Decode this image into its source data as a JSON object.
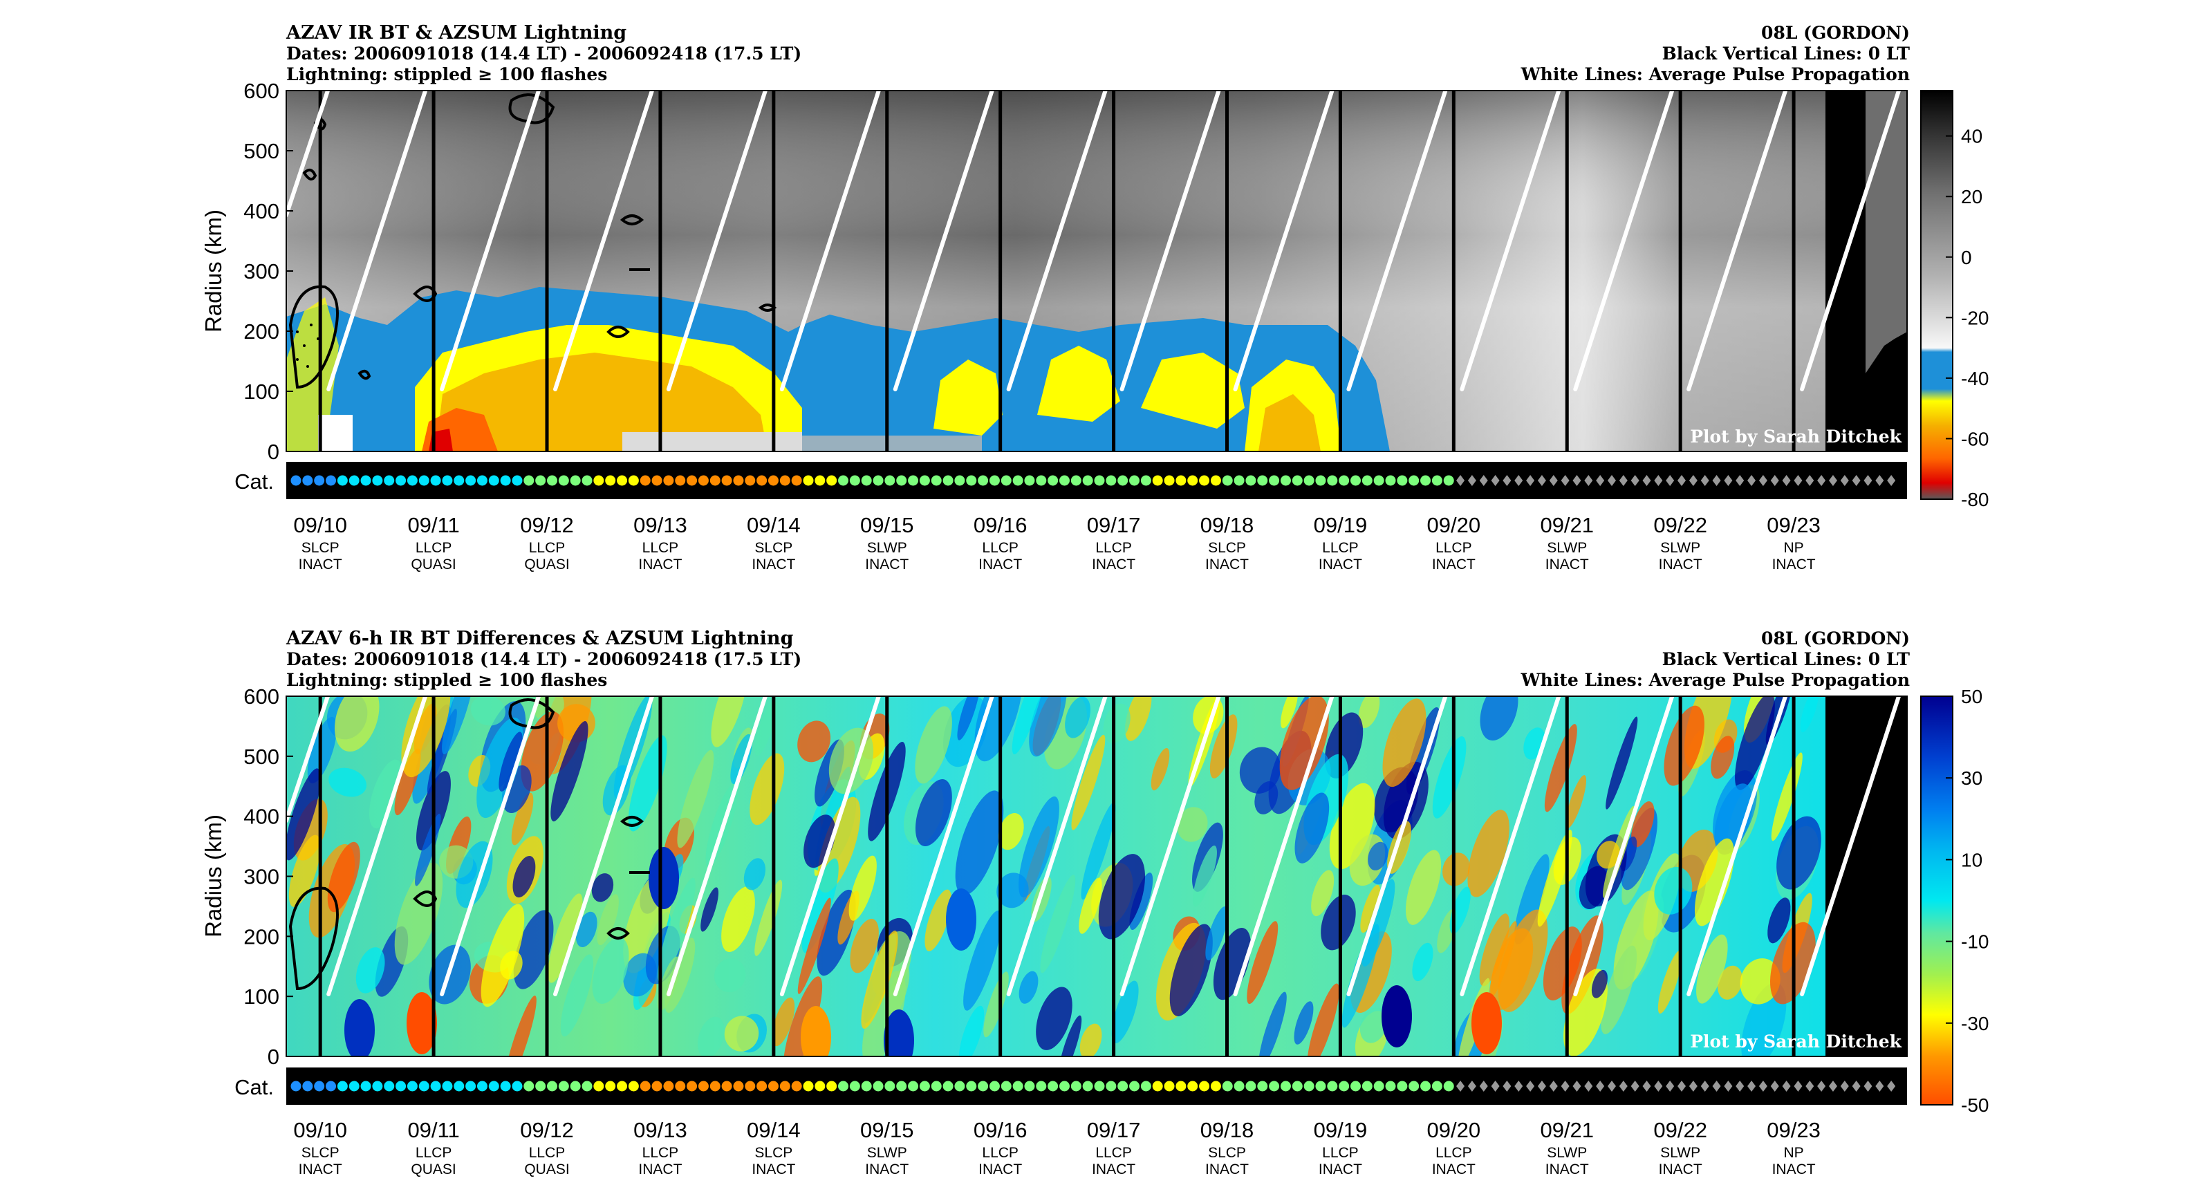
{
  "colors": {
    "ir_colorbar": [
      "#f5f5f5",
      "#e0e0e0",
      "#c8c8c8",
      "#b0b0b0",
      "#989898",
      "#808080",
      "#606060",
      "#404040",
      "#202020",
      "#000000"
    ],
    "ir_cold": [
      "#1e90d8",
      "#ffff00",
      "#f5c400",
      "#f59a00",
      "#ff6600",
      "#e00000",
      "#606060"
    ],
    "diff_colorbar": [
      "#ff4d00",
      "#ff9900",
      "#ffd000",
      "#ffff00",
      "#c8f040",
      "#90e870",
      "#50e8b0",
      "#00e8f0",
      "#00c0f0",
      "#0090f0",
      "#0060e0",
      "#0030c0",
      "#000090"
    ],
    "category_dots": [
      "#1e90ff",
      "#00e5ff",
      "#7dff7d",
      "#ffff00",
      "#ff8c00"
    ],
    "category_diamond": "#9a9a9a"
  },
  "panels": [
    {
      "title": "AZAV IR BT & AZSUM Lightning",
      "dates_line": "Dates: 2006091018 (14.4 LT) - 2006092418 (17.5 LT)",
      "lightning_line": "Lightning: stippled ≥ 100 flashes",
      "storm": "08L (GORDON)",
      "vertical_lines_note": "Black Vertical Lines: 0 LT",
      "white_lines_note": "White Lines: Average Pulse Propagation",
      "credit": "Plot by Sarah Ditchek",
      "ylabel": "Radius (km)",
      "cat_label": "Cat.",
      "colorbar_ticks": [
        "40",
        "20",
        "0",
        "-20",
        "-40",
        "-60",
        "-80"
      ]
    },
    {
      "title": "AZAV 6-h IR BT Differences & AZSUM Lightning",
      "dates_line": "Dates: 2006091018 (14.4 LT) - 2006092418 (17.5 LT)",
      "lightning_line": "Lightning: stippled ≥ 100 flashes",
      "storm": "08L (GORDON)",
      "vertical_lines_note": "Black Vertical Lines: 0 LT",
      "white_lines_note": "White Lines: Average Pulse Propagation",
      "credit": "Plot by Sarah Ditchek",
      "ylabel": "Radius (km)",
      "cat_label": "Cat.",
      "colorbar_ticks": [
        "50",
        "30",
        "10",
        "-10",
        "-30",
        "-50"
      ]
    }
  ],
  "chart_data": {
    "type": "heatmap",
    "ylim": [
      0,
      600
    ],
    "yticks": [
      0,
      100,
      200,
      300,
      400,
      500,
      600
    ],
    "x_days": [
      {
        "date": "09/10",
        "structure": "SLCP",
        "activity": "INACT"
      },
      {
        "date": "09/11",
        "structure": "LLCP",
        "activity": "QUASI"
      },
      {
        "date": "09/12",
        "structure": "LLCP",
        "activity": "QUASI"
      },
      {
        "date": "09/13",
        "structure": "LLCP",
        "activity": "INACT"
      },
      {
        "date": "09/14",
        "structure": "SLCP",
        "activity": "INACT"
      },
      {
        "date": "09/15",
        "structure": "SLWP",
        "activity": "INACT"
      },
      {
        "date": "09/16",
        "structure": "LLCP",
        "activity": "INACT"
      },
      {
        "date": "09/17",
        "structure": "LLCP",
        "activity": "INACT"
      },
      {
        "date": "09/18",
        "structure": "SLCP",
        "activity": "INACT"
      },
      {
        "date": "09/19",
        "structure": "LLCP",
        "activity": "INACT"
      },
      {
        "date": "09/20",
        "structure": "LLCP",
        "activity": "INACT"
      },
      {
        "date": "09/21",
        "structure": "SLWP",
        "activity": "INACT"
      },
      {
        "date": "09/22",
        "structure": "SLWP",
        "activity": "INACT"
      },
      {
        "date": "09/23",
        "structure": "NP",
        "activity": "INACT"
      }
    ],
    "ir_colorbar_range": [
      -80,
      55
    ],
    "diff_colorbar_range": [
      -50,
      50
    ],
    "category_sequence": [
      0,
      0,
      0,
      0,
      1,
      1,
      1,
      1,
      1,
      1,
      1,
      1,
      1,
      1,
      1,
      1,
      1,
      1,
      1,
      1,
      2,
      2,
      2,
      2,
      2,
      2,
      3,
      3,
      3,
      3,
      4,
      4,
      4,
      4,
      4,
      4,
      4,
      4,
      4,
      4,
      4,
      4,
      4,
      4,
      3,
      3,
      3,
      2,
      2,
      2,
      2,
      2,
      2,
      2,
      2,
      2,
      2,
      2,
      2,
      2,
      2,
      2,
      2,
      2,
      2,
      2,
      2,
      2,
      2,
      2,
      2,
      2,
      2,
      2,
      3,
      3,
      3,
      3,
      3,
      3,
      2,
      2,
      2,
      2,
      2,
      2,
      2,
      2,
      2,
      2,
      2,
      2,
      2,
      2,
      2,
      2,
      2,
      2,
      2,
      2,
      5,
      5,
      5,
      5,
      5,
      5,
      5,
      5,
      5,
      5,
      5,
      5,
      5,
      5,
      5,
      5,
      5,
      5,
      5,
      5,
      5,
      5,
      5,
      5,
      5,
      5,
      5,
      5,
      5,
      5,
      5,
      5,
      5,
      5,
      5,
      5,
      5,
      5
    ]
  }
}
